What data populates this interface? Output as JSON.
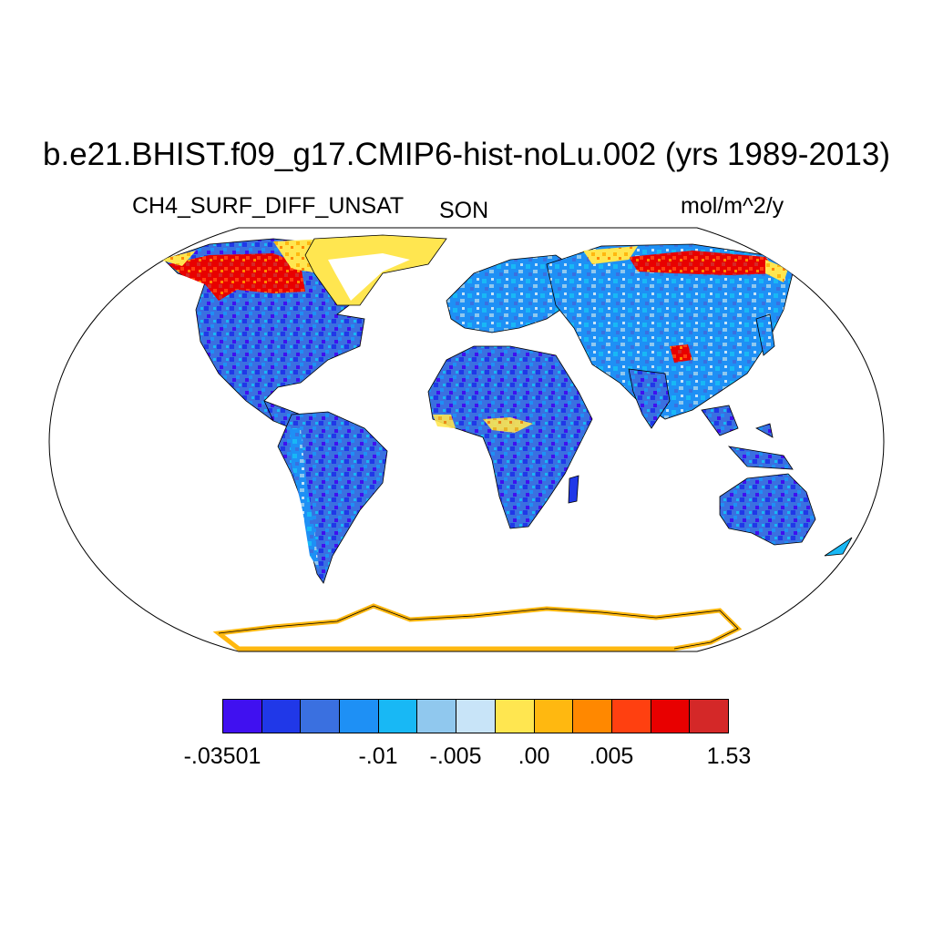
{
  "title": "b.e21.BHIST.f09_g17.CMIP6-hist-noLu.002 (yrs 1989-2013)",
  "variable": "CH4_SURF_DIFF_UNSAT",
  "season": "SON",
  "units": "mol/m^2/y",
  "colorbar": {
    "colors": [
      "#4010f0",
      "#2038e8",
      "#3a70e0",
      "#1e90f5",
      "#18b8f5",
      "#90c8ee",
      "#c8e4f8",
      "#ffe650",
      "#ffb810",
      "#ff8800",
      "#ff4010",
      "#e80000",
      "#d42828"
    ],
    "tick_labels": [
      "-.03501",
      "-.01",
      "-.005",
      ".00",
      ".005",
      "1.53"
    ]
  },
  "colors": {
    "ocean": "#ffffff",
    "land_background": "#3a70e0",
    "coastline": "#000000"
  }
}
